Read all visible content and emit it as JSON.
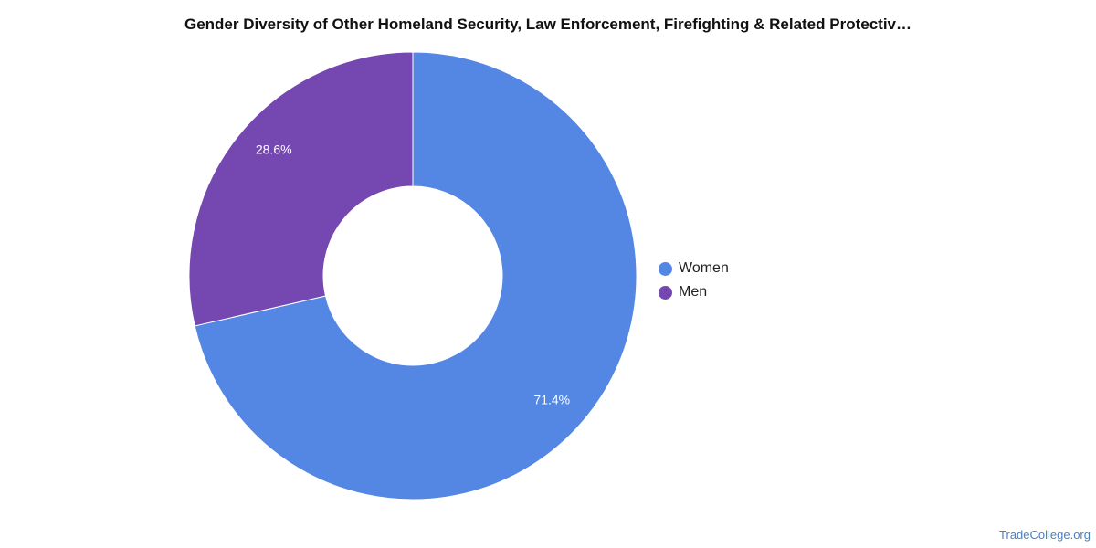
{
  "chart_data": {
    "type": "pie",
    "title": "Gender Diversity of Other Homeland Security, Law Enforcement, Firefighting & Related Protectiv…",
    "donut": true,
    "slices": [
      {
        "name": "Women",
        "value": 71.4,
        "label": "71.4%",
        "color": "#5486e3"
      },
      {
        "name": "Men",
        "value": 28.6,
        "label": "28.6%",
        "color": "#7547b1"
      }
    ],
    "legend_position": "right"
  },
  "watermark": "TradeCollege.org"
}
